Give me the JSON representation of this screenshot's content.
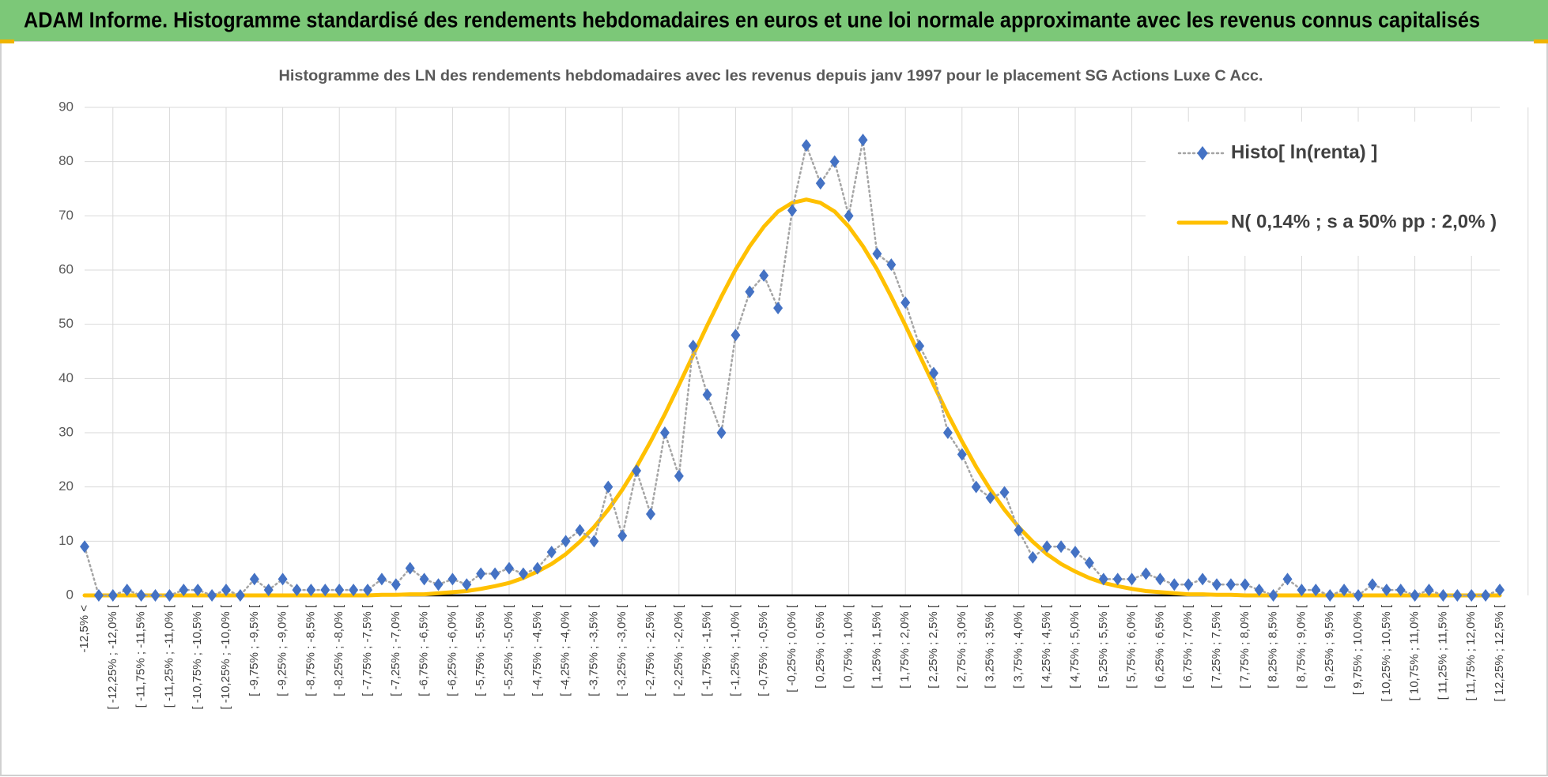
{
  "header": {
    "title": "ADAM Informe. Histogramme standardisé des rendements hebdomadaires en euros et une loi normale approximante avec les revenus connus capitalisés"
  },
  "chart_data": {
    "type": "line",
    "title": "Histogramme des LN des rendements hebdomadaires avec les revenus depuis janv 1997 pour le placement SG Actions Luxe C Acc.",
    "categories": [
      "-12,5% <",
      null,
      "[ -12,25% ; -12,0% [",
      null,
      "[ -11,75% ; -11,5% [",
      null,
      "[ -11,25% ; -11,0% [",
      null,
      "[ -10,75% ; -10,5% [",
      null,
      "[ -10,25% ; -10,0% [",
      null,
      "[ -9,75% ; -9,5% [",
      null,
      "[ -9,25% ; -9,0% [",
      null,
      "[ -8,75% ; -8,5% [",
      null,
      "[ -8,25% ; -8,0% [",
      null,
      "[ -7,75% ; -7,5% [",
      null,
      "[ -7,25% ; -7,0% [",
      null,
      "[ -6,75% ; -6,5% [",
      null,
      "[ -6,25% ; -6,0% [",
      null,
      "[ -5,75% ; -5,5% [",
      null,
      "[ -5,25% ; -5,0% [",
      null,
      "[ -4,75% ; -4,5% [",
      null,
      "[ -4,25% ; -4,0% [",
      null,
      "[ -3,75% ; -3,5% [",
      null,
      "[ -3,25% ; -3,0% [",
      null,
      "[ -2,75% ; -2,5% [",
      null,
      "[ -2,25% ; -2,0% [",
      null,
      "[ -1,75% ; -1,5% [",
      null,
      "[ -1,25% ; -1,0% [",
      null,
      "[ -0,75% ; -0,5% [",
      null,
      "[ -0,25% ; 0,0% [",
      null,
      "[ 0,25% ; 0,5% [",
      null,
      "[ 0,75% ; 1,0% [",
      null,
      "[ 1,25% ; 1,5% [",
      null,
      "[ 1,75% ; 2,0% [",
      null,
      "[ 2,25% ; 2,5% [",
      null,
      "[ 2,75% ; 3,0% [",
      null,
      "[ 3,25% ; 3,5% [",
      null,
      "[ 3,75% ; 4,0% [",
      null,
      "[ 4,25% ; 4,5% [",
      null,
      "[ 4,75% ; 5,0% [",
      null,
      "[ 5,25% ; 5,5% [",
      null,
      "[ 5,75% ; 6,0% [",
      null,
      "[ 6,25% ; 6,5% [",
      null,
      "[ 6,75% ; 7,0% [",
      null,
      "[ 7,25% ; 7,5% [",
      null,
      "[ 7,75% ; 8,0% [",
      null,
      "[ 8,25% ; 8,5% [",
      null,
      "[ 8,75% ; 9,0% [",
      null,
      "[ 9,25% ; 9,5% [",
      null,
      "[ 9,75% ; 10,0% [",
      null,
      "[ 10,25% ; 10,5% [",
      null,
      "[ 10,75% ; 11,0% [",
      null,
      "[ 11,25% ; 11,5% [",
      null,
      "[ 11,75% ; 12,0% [",
      null,
      "[ 12,25% ; 12,5% ["
    ],
    "series": [
      {
        "name": "Histo[ ln(renta) ]",
        "color": "#4472c4",
        "line_color": "#a5a5a5",
        "line_style": "dotted",
        "marker": "diamond",
        "values": [
          9,
          0,
          0,
          1,
          0,
          0,
          0,
          1,
          1,
          0,
          1,
          0,
          3,
          1,
          3,
          1,
          1,
          1,
          1,
          1,
          1,
          3,
          2,
          5,
          3,
          2,
          3,
          2,
          4,
          4,
          5,
          4,
          5,
          8,
          10,
          12,
          10,
          20,
          11,
          23,
          15,
          30,
          22,
          46,
          37,
          30,
          48,
          56,
          59,
          53,
          71,
          83,
          76,
          80,
          70,
          84,
          63,
          61,
          54,
          46,
          41,
          30,
          26,
          20,
          18,
          19,
          12,
          7,
          9,
          9,
          8,
          6,
          3,
          3,
          3,
          4,
          3,
          2,
          2,
          3,
          2,
          2,
          2,
          1,
          0,
          3,
          1,
          1,
          0,
          1,
          0,
          2,
          1,
          1,
          0,
          1,
          0,
          0,
          0,
          0,
          1
        ]
      },
      {
        "name": "N( 0,14% ; s a 50% pp : 2,0% )",
        "color": "#ffc000",
        "line_style": "solid",
        "marker": "none",
        "values": [
          0,
          0,
          0,
          0,
          0,
          0,
          0,
          0,
          0,
          0,
          0,
          0,
          0,
          0,
          0,
          0,
          0,
          0,
          0,
          0,
          0,
          0.1,
          0.1,
          0.2,
          0.2,
          0.4,
          0.6,
          0.8,
          1.2,
          1.7,
          2.3,
          3.2,
          4.4,
          5.8,
          7.6,
          9.9,
          12.6,
          15.8,
          19.5,
          23.7,
          28.4,
          33.4,
          38.8,
          44.3,
          49.8,
          55.1,
          60.1,
          64.4,
          68.0,
          70.8,
          72.4,
          73,
          72.4,
          70.8,
          68.0,
          64.4,
          60.1,
          55.1,
          49.8,
          44.3,
          38.8,
          33.4,
          28.4,
          23.7,
          19.5,
          15.8,
          12.6,
          9.9,
          7.6,
          5.8,
          4.4,
          3.2,
          2.3,
          1.7,
          1.2,
          0.8,
          0.6,
          0.4,
          0.2,
          0.2,
          0.1,
          0.1,
          0,
          0,
          0,
          0,
          0,
          0,
          0,
          0,
          0,
          0,
          0,
          0,
          0,
          0,
          0,
          0,
          0,
          0,
          0
        ]
      }
    ],
    "ylim": [
      0,
      90
    ],
    "yticks": [
      0,
      10,
      20,
      30,
      40,
      50,
      60,
      70,
      80,
      90
    ],
    "grid": true,
    "legend": "upper right"
  }
}
